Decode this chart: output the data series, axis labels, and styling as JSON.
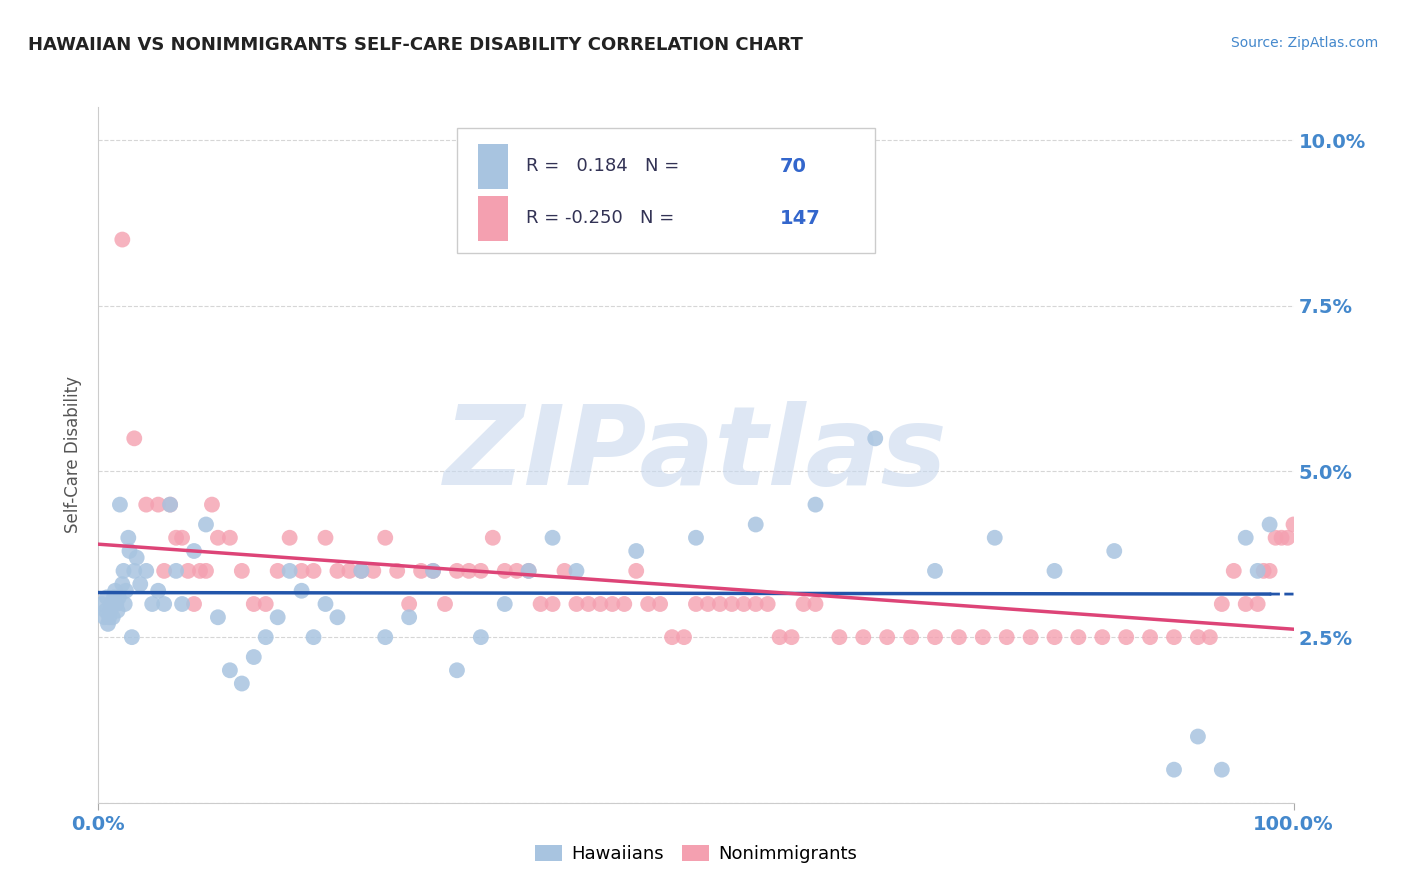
{
  "title": "HAWAIIAN VS NONIMMIGRANTS SELF-CARE DISABILITY CORRELATION CHART",
  "source_text": "Source: ZipAtlas.com",
  "ylabel": "Self-Care Disability",
  "xlim": [
    0,
    100
  ],
  "ylim": [
    0,
    10.5
  ],
  "yticks": [
    0,
    2.5,
    5.0,
    7.5,
    10.0
  ],
  "xtick_labels": [
    "0.0%",
    "100.0%"
  ],
  "ytick_labels": [
    "",
    "2.5%",
    "5.0%",
    "7.5%",
    "10.0%"
  ],
  "hawaiian_color": "#a8c4e0",
  "nonimmigrant_color": "#f4a0b0",
  "hawaiian_line_color": "#2255aa",
  "nonimmigrant_line_color": "#dd4477",
  "hawaiian_R": 0.184,
  "hawaiian_N": 70,
  "nonimmigrant_R": -0.25,
  "nonimmigrant_N": 147,
  "legend_text_color": "#333355",
  "legend_RN_color": "#3366cc",
  "watermark": "ZIPatlas",
  "watermark_color": "#c8d8ee",
  "background_color": "#ffffff",
  "grid_color": "#cccccc",
  "title_color": "#222222",
  "axis_label_color": "#555555",
  "tick_label_color": "#4488cc",
  "source_color": "#4488cc",
  "hawaiian_x": [
    0.3,
    0.5,
    0.6,
    0.7,
    0.8,
    0.9,
    1.0,
    1.1,
    1.2,
    1.3,
    1.4,
    1.5,
    1.6,
    1.7,
    1.8,
    2.0,
    2.1,
    2.2,
    2.3,
    2.5,
    2.6,
    2.8,
    3.0,
    3.2,
    3.5,
    4.0,
    4.5,
    5.0,
    5.5,
    6.0,
    6.5,
    7.0,
    8.0,
    9.0,
    10.0,
    11.0,
    12.0,
    13.0,
    14.0,
    15.0,
    16.0,
    17.0,
    18.0,
    19.0,
    20.0,
    22.0,
    24.0,
    26.0,
    28.0,
    30.0,
    32.0,
    34.0,
    36.0,
    38.0,
    40.0,
    45.0,
    50.0,
    55.0,
    60.0,
    65.0,
    70.0,
    75.0,
    80.0,
    85.0,
    90.0,
    92.0,
    94.0,
    96.0,
    97.0,
    98.0
  ],
  "hawaiian_y": [
    3.0,
    2.8,
    2.9,
    3.1,
    2.7,
    2.8,
    2.9,
    3.0,
    2.8,
    3.1,
    3.2,
    3.0,
    2.9,
    3.1,
    4.5,
    3.3,
    3.5,
    3.0,
    3.2,
    4.0,
    3.8,
    2.5,
    3.5,
    3.7,
    3.3,
    3.5,
    3.0,
    3.2,
    3.0,
    4.5,
    3.5,
    3.0,
    3.8,
    4.2,
    2.8,
    2.0,
    1.8,
    2.2,
    2.5,
    2.8,
    3.5,
    3.2,
    2.5,
    3.0,
    2.8,
    3.5,
    2.5,
    2.8,
    3.5,
    2.0,
    2.5,
    3.0,
    3.5,
    4.0,
    3.5,
    3.8,
    4.0,
    4.2,
    4.5,
    5.5,
    3.5,
    4.0,
    3.5,
    3.8,
    0.5,
    1.0,
    0.5,
    4.0,
    3.5,
    4.2
  ],
  "nonimmigrant_x": [
    2.0,
    3.0,
    4.0,
    5.0,
    5.5,
    6.0,
    6.5,
    7.0,
    7.5,
    8.0,
    8.5,
    9.0,
    9.5,
    10.0,
    11.0,
    12.0,
    13.0,
    14.0,
    15.0,
    16.0,
    17.0,
    18.0,
    19.0,
    20.0,
    21.0,
    22.0,
    23.0,
    24.0,
    25.0,
    26.0,
    27.0,
    28.0,
    29.0,
    30.0,
    31.0,
    32.0,
    33.0,
    34.0,
    35.0,
    36.0,
    37.0,
    38.0,
    39.0,
    40.0,
    41.0,
    42.0,
    43.0,
    44.0,
    45.0,
    46.0,
    47.0,
    48.0,
    49.0,
    50.0,
    51.0,
    52.0,
    53.0,
    54.0,
    55.0,
    56.0,
    57.0,
    58.0,
    59.0,
    60.0,
    62.0,
    64.0,
    66.0,
    68.0,
    70.0,
    72.0,
    74.0,
    76.0,
    78.0,
    80.0,
    82.0,
    84.0,
    86.0,
    88.0,
    90.0,
    92.0,
    93.0,
    94.0,
    95.0,
    96.0,
    97.0,
    97.5,
    98.0,
    98.5,
    99.0,
    99.5,
    100.0
  ],
  "nonimmigrant_y": [
    8.5,
    5.5,
    4.5,
    4.5,
    3.5,
    4.5,
    4.0,
    4.0,
    3.5,
    3.0,
    3.5,
    3.5,
    4.5,
    4.0,
    4.0,
    3.5,
    3.0,
    3.0,
    3.5,
    4.0,
    3.5,
    3.5,
    4.0,
    3.5,
    3.5,
    3.5,
    3.5,
    4.0,
    3.5,
    3.0,
    3.5,
    3.5,
    3.0,
    3.5,
    3.5,
    3.5,
    4.0,
    3.5,
    3.5,
    3.5,
    3.0,
    3.0,
    3.5,
    3.0,
    3.0,
    3.0,
    3.0,
    3.0,
    3.5,
    3.0,
    3.0,
    2.5,
    2.5,
    3.0,
    3.0,
    3.0,
    3.0,
    3.0,
    3.0,
    3.0,
    2.5,
    2.5,
    3.0,
    3.0,
    2.5,
    2.5,
    2.5,
    2.5,
    2.5,
    2.5,
    2.5,
    2.5,
    2.5,
    2.5,
    2.5,
    2.5,
    2.5,
    2.5,
    2.5,
    2.5,
    2.5,
    3.0,
    3.5,
    3.0,
    3.0,
    3.5,
    3.5,
    4.0,
    4.0,
    4.0,
    4.2
  ]
}
